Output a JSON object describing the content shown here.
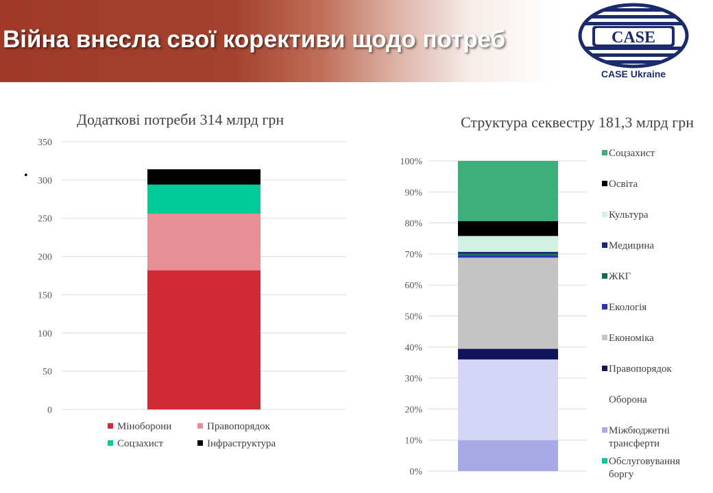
{
  "header": {
    "title": "Війна внесла свої корективи щодо потреб",
    "logo_text": "CASE",
    "logo_caption": "CASE Ukraine"
  },
  "bullet": "•",
  "colors": {
    "banner": "#9e3a26",
    "logo_blue": "#1b2a6e"
  },
  "chart_data": [
    {
      "type": "bar",
      "stacked": true,
      "title": "Додаткові потреби 314 млрд грн",
      "categories": [
        ""
      ],
      "ylim": [
        0,
        350
      ],
      "yticks": [
        0,
        50,
        100,
        150,
        200,
        250,
        300,
        350
      ],
      "grid": true,
      "legend_position": "bottom",
      "series": [
        {
          "name": "Міноборони",
          "values": [
            182
          ],
          "color": "#d12a35"
        },
        {
          "name": "Правопорядок",
          "values": [
            74
          ],
          "color": "#e88f95"
        },
        {
          "name": "Соцзахист",
          "values": [
            38
          ],
          "color": "#00cc99"
        },
        {
          "name": "Інфраструктура",
          "values": [
            20
          ],
          "color": "#000000"
        }
      ]
    },
    {
      "type": "bar",
      "stacked": true,
      "percent": true,
      "title": "Структура секвестру  181,3 млрд грн",
      "categories": [
        ""
      ],
      "ylim": [
        0,
        100
      ],
      "yticks": [
        "0%",
        "10%",
        "20%",
        "30%",
        "40%",
        "50%",
        "60%",
        "70%",
        "80%",
        "90%",
        "100%"
      ],
      "grid": true,
      "legend_position": "right",
      "series": [
        {
          "name": "Обслуговування боргу",
          "values": [
            0
          ],
          "color": "#00cc99"
        },
        {
          "name": "Міжбюджетні трансферти",
          "values": [
            10
          ],
          "color": "#a9a9e6"
        },
        {
          "name": "Оборона",
          "values": [
            26
          ],
          "color": "#d5d5f5"
        },
        {
          "name": "Правопорядок",
          "values": [
            3.4
          ],
          "color": "#10145a"
        },
        {
          "name": "Економіка",
          "values": [
            29.4
          ],
          "color": "#c4c4c4"
        },
        {
          "name": "Екологія",
          "values": [
            0.8
          ],
          "color": "#2a37a8"
        },
        {
          "name": "ЖКГ",
          "values": [
            0.5
          ],
          "color": "#0a6e58"
        },
        {
          "name": "Медицина",
          "values": [
            0.6
          ],
          "color": "#1a2870"
        },
        {
          "name": "Культура",
          "values": [
            5.1
          ],
          "color": "#d1f1e3"
        },
        {
          "name": "Освіта",
          "values": [
            4.8
          ],
          "color": "#000000"
        },
        {
          "name": "Соцзахист",
          "values": [
            19.4
          ],
          "color": "#3daf7a"
        }
      ]
    }
  ]
}
